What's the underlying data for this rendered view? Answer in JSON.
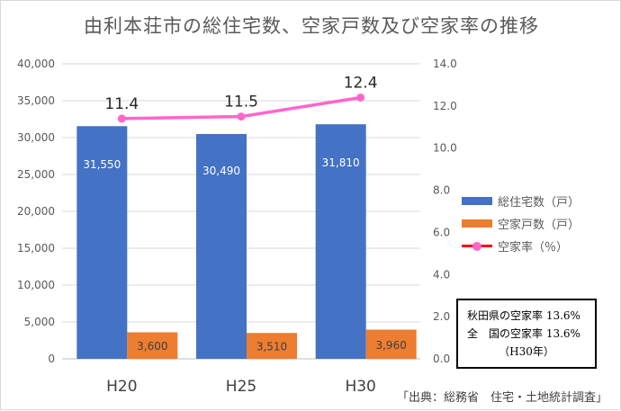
{
  "title": "由利本荘市の総住宅数、空家戸数及び空家率の推移",
  "chart_data": {
    "type": "bar",
    "categories": [
      "H20",
      "H25",
      "H30"
    ],
    "series": [
      {
        "name": "総住宅数（戸）",
        "type": "bar",
        "axis": "left",
        "color": "#4472C4",
        "values": [
          31550,
          30490,
          31810
        ],
        "labels": [
          "31,550",
          "30,490",
          "31,810"
        ]
      },
      {
        "name": "空家戸数（戸）",
        "type": "bar",
        "axis": "left",
        "color": "#ED7D31",
        "values": [
          3600,
          3510,
          3960
        ],
        "labels": [
          "3,600",
          "3,510",
          "3,960"
        ]
      },
      {
        "name": "空家率（％）",
        "type": "line",
        "axis": "right",
        "color": "#FF66CC",
        "values": [
          11.4,
          11.5,
          12.4
        ],
        "labels": [
          "11.4",
          "11.5",
          "12.4"
        ]
      }
    ],
    "y_left": {
      "ylim": [
        0,
        40000
      ],
      "ticks": [
        "0",
        "5,000",
        "10,000",
        "15,000",
        "20,000",
        "25,000",
        "30,000",
        "35,000",
        "40,000"
      ]
    },
    "y_right": {
      "ylim": [
        0,
        14
      ],
      "ticks": [
        "0.0",
        "2.0",
        "4.0",
        "6.0",
        "8.0",
        "10.0",
        "12.0",
        "14.0"
      ]
    },
    "grid": true,
    "legend": "right"
  },
  "note": {
    "line1": "秋田県の空家率 13.6%",
    "line2": "全　国の空家率 13.6%",
    "line3": "（H30年）"
  },
  "source": "「出典：総務省　住宅・土地統計調査」"
}
